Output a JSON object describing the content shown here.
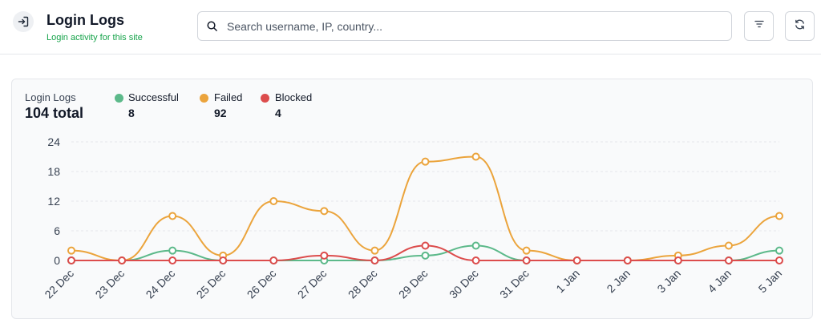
{
  "header": {
    "title": "Login Logs",
    "subtitle": "Login activity for this site",
    "search_placeholder": "Search username, IP, country...",
    "search_value": ""
  },
  "card": {
    "label": "Login Logs",
    "total": "104 total",
    "legend": [
      {
        "name": "Successful",
        "count": "8",
        "color": "#5cb98a"
      },
      {
        "name": "Failed",
        "count": "92",
        "color": "#eba43c"
      },
      {
        "name": "Blocked",
        "count": "4",
        "color": "#dc4c4c"
      }
    ]
  },
  "chart_data": {
    "type": "line",
    "categories": [
      "22 Dec",
      "23 Dec",
      "24 Dec",
      "25 Dec",
      "26 Dec",
      "27 Dec",
      "28 Dec",
      "29 Dec",
      "30 Dec",
      "31 Dec",
      "1 Jan",
      "2 Jan",
      "3 Jan",
      "4 Jan",
      "5 Jan"
    ],
    "y_ticks": [
      "0",
      "6",
      "12",
      "18",
      "24"
    ],
    "ylim": [
      0,
      24
    ],
    "grid": "horizontal dashed",
    "series": [
      {
        "name": "Successful",
        "color": "#5cb98a",
        "values": [
          0,
          0,
          2,
          0,
          0,
          0,
          0,
          1,
          3,
          0,
          0,
          0,
          0,
          0,
          2
        ]
      },
      {
        "name": "Failed",
        "color": "#eba43c",
        "values": [
          2,
          0,
          9,
          1,
          12,
          10,
          2,
          20,
          21,
          2,
          0,
          0,
          1,
          3,
          9
        ]
      },
      {
        "name": "Blocked",
        "color": "#dc4c4c",
        "values": [
          0,
          0,
          0,
          0,
          0,
          1,
          0,
          3,
          0,
          0,
          0,
          0,
          0,
          0,
          0
        ]
      }
    ]
  }
}
